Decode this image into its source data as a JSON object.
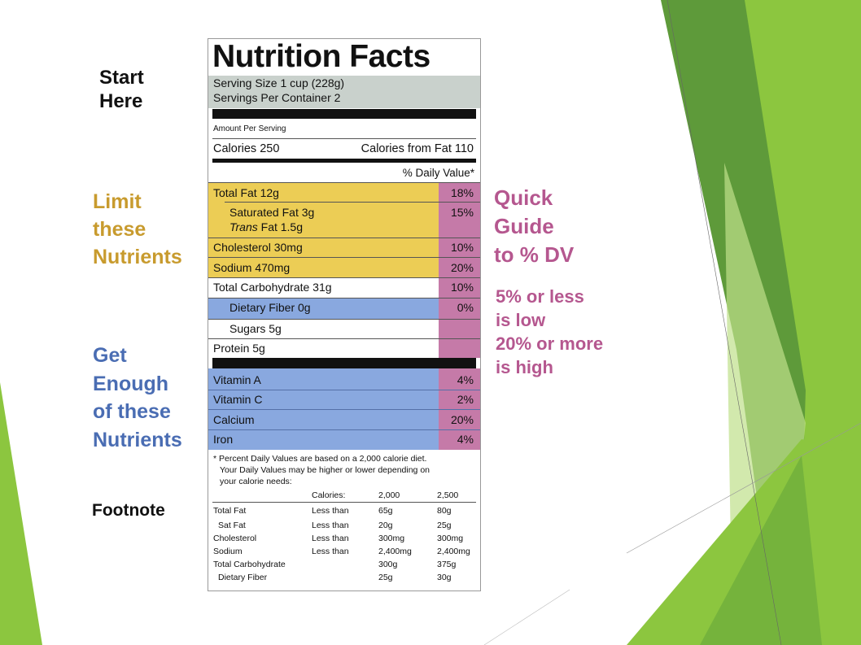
{
  "colors": {
    "green_dark": "#5e9a3a",
    "green_light": "#8cc63f",
    "yellow": "#eccd55",
    "blue": "#89a8df",
    "pink": "#c57aa8",
    "gray_band": "#c9d1cc",
    "gold_text": "#c89b2e",
    "blue_text": "#4a6db3",
    "pink_text": "#b5578f"
  },
  "callouts": {
    "start": [
      "Start",
      "Here"
    ],
    "limit": [
      "Limit",
      "these",
      "Nutrients"
    ],
    "enough": [
      "Get",
      "Enough",
      "of these",
      "Nutrients"
    ],
    "footnote": "Footnote",
    "quick": [
      "Quick",
      "Guide",
      "to % DV"
    ],
    "range": [
      "5% or less",
      "is low",
      "20% or more",
      "is high"
    ]
  },
  "label": {
    "title": "Nutrition Facts",
    "serving_size": "Serving Size 1 cup (228g)",
    "servings_per": "Servings Per Container 2",
    "amount_per": "Amount Per Serving",
    "calories": "Calories 250",
    "calories_fat": "Calories from Fat 110",
    "dv_header": "% Daily Value*",
    "limit_rows": [
      {
        "label": "Total Fat 12g",
        "pct": "18%"
      },
      {
        "label": "Saturated Fat 3g",
        "pct": "15%"
      },
      {
        "label_italic": "Trans",
        "label_rest": " Fat 1.5g",
        "pct": ""
      },
      {
        "label": "Cholesterol 30mg",
        "pct": "10%"
      },
      {
        "label": "Sodium 470mg",
        "pct": "20%"
      }
    ],
    "carb": {
      "label": "Total Carbohydrate 31g",
      "pct": "10%"
    },
    "fiber": {
      "label": "Dietary Fiber 0g",
      "pct": "0%"
    },
    "sugars": {
      "label": "Sugars 5g"
    },
    "protein": {
      "label": "Protein 5g"
    },
    "vitamins": [
      {
        "label": "Vitamin A",
        "pct": "4%"
      },
      {
        "label": "Vitamin C",
        "pct": "2%"
      },
      {
        "label": "Calcium",
        "pct": "20%"
      },
      {
        "label": "Iron",
        "pct": "4%"
      }
    ],
    "footnote_text": [
      "* Percent Daily Values are based on a 2,000 calorie diet.",
      "Your Daily Values may be higher or lower depending on",
      "your calorie needs:"
    ],
    "footnote_table": {
      "header": [
        "",
        "Calories:",
        "2,000",
        "2,500"
      ],
      "rows": [
        [
          "Total Fat",
          "Less than",
          "65g",
          "80g"
        ],
        [
          "Sat Fat",
          "Less than",
          "20g",
          "25g"
        ],
        [
          "Cholesterol",
          "Less than",
          "300mg",
          "300mg"
        ],
        [
          "Sodium",
          "Less than",
          "2,400mg",
          "2,400mg"
        ],
        [
          "Total Carbohydrate",
          "",
          "300g",
          "375g"
        ],
        [
          "Dietary Fiber",
          "",
          "25g",
          "30g"
        ]
      ]
    }
  }
}
